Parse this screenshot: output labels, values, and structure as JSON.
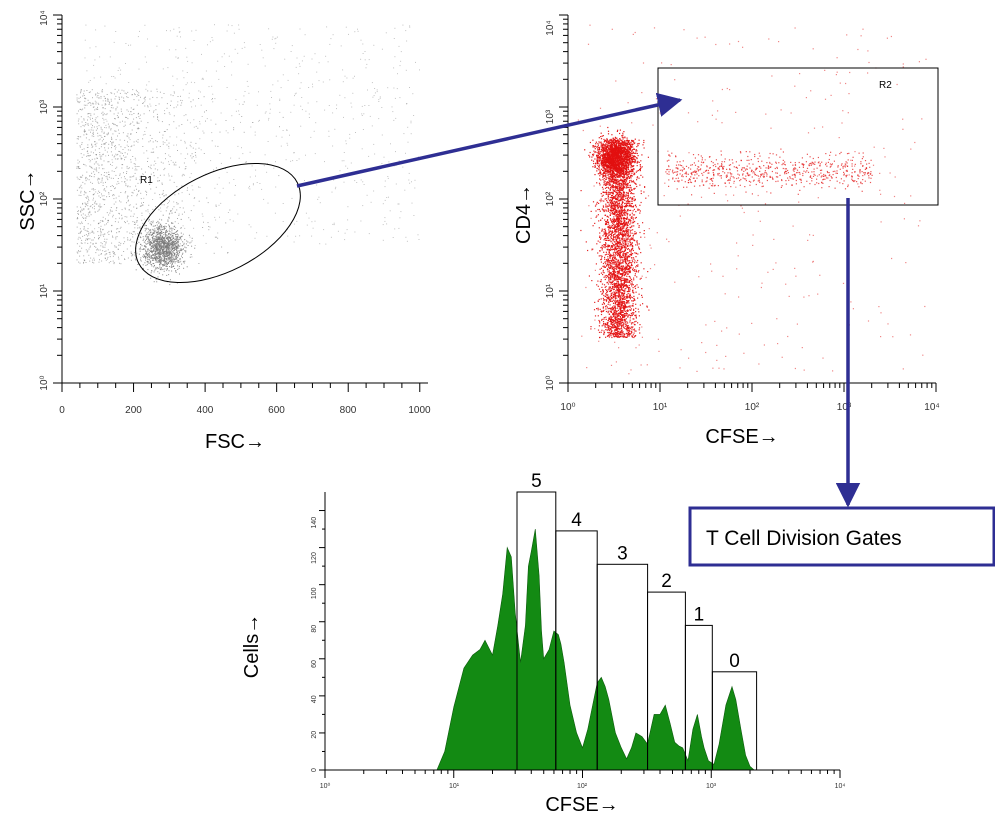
{
  "colors": {
    "arrow": "#2e2e93",
    "histogram_fill": "#138a13",
    "dots_gray": "#7a7a7a",
    "dots_red": "#e21010"
  },
  "callout": {
    "text": "T Cell Division Gates"
  },
  "chart_data": [
    {
      "type": "scatter",
      "xlabel": "FSC→",
      "ylabel": "SSC→",
      "x_scale": "linear",
      "y_scale": "log",
      "xlim": [
        0,
        1023
      ],
      "ylim": [
        1,
        10000
      ],
      "x_ticks": [
        "0",
        "200",
        "400",
        "600",
        "800",
        "1000"
      ],
      "y_ticks": [
        "10⁰",
        "10¹",
        "10²",
        "10³",
        "10⁴"
      ],
      "gate": {
        "name": "R1",
        "shape": "ellipse"
      },
      "main_population": {
        "x_center": 280,
        "y_center": 30
      }
    },
    {
      "type": "scatter",
      "xlabel": "CFSE→",
      "ylabel": "CD4→",
      "x_scale": "log",
      "y_scale": "log",
      "xlim": [
        1,
        10000
      ],
      "ylim": [
        1,
        10000
      ],
      "x_ticks": [
        "10⁰",
        "10¹",
        "10²",
        "10³",
        "10⁴"
      ],
      "y_ticks": [
        "10⁰",
        "10¹",
        "10²",
        "10³",
        "10⁴"
      ],
      "gate": {
        "name": "R2",
        "shape": "rectangle",
        "x_range": [
          10,
          3500
        ],
        "y_range": [
          100,
          3500
        ]
      },
      "main_population": {
        "x_center": 3.5,
        "y_range": [
          3,
          500
        ]
      }
    },
    {
      "type": "area",
      "xlabel": "CFSE→",
      "ylabel": "Cells→",
      "x_scale": "log",
      "xlim": [
        1,
        10000
      ],
      "ylim": [
        0,
        150
      ],
      "x_ticks": [
        "10⁰",
        "10¹",
        "10²",
        "10³",
        "10⁴"
      ],
      "y_ticks": [
        "0",
        "20",
        "40",
        "60",
        "80",
        "100",
        "120",
        "140"
      ],
      "x": [
        7.4,
        8.5,
        10,
        12,
        14,
        16,
        17.5,
        20,
        22,
        24,
        26,
        28,
        30,
        33,
        36,
        38,
        40,
        43,
        46,
        48,
        50,
        55,
        60,
        65,
        68,
        72,
        80,
        90,
        100,
        110,
        120,
        130,
        140,
        150,
        160,
        180,
        200,
        220,
        240,
        260,
        290,
        320,
        360,
        400,
        440,
        480,
        520,
        560,
        600,
        660,
        720,
        780,
        840,
        880,
        950,
        1050,
        1150,
        1300,
        1450,
        1550,
        1700,
        1850,
        2000,
        2150
      ],
      "y": [
        0,
        10,
        34,
        55,
        62,
        65,
        70,
        62,
        78,
        95,
        120,
        115,
        85,
        58,
        78,
        110,
        118,
        130,
        105,
        75,
        60,
        65,
        75,
        73,
        68,
        58,
        35,
        20,
        12,
        22,
        35,
        47,
        50,
        45,
        38,
        20,
        12,
        6,
        12,
        20,
        18,
        14,
        30,
        30,
        35,
        25,
        15,
        13,
        12,
        5,
        22,
        30,
        18,
        12,
        5,
        3,
        14,
        35,
        45,
        38,
        22,
        8,
        2,
        0
      ],
      "division_gates": [
        {
          "label": "5",
          "x_range": [
            31,
            62
          ],
          "height": 150
        },
        {
          "label": "4",
          "x_range": [
            62,
            130
          ],
          "height": 129
        },
        {
          "label": "3",
          "x_range": [
            130,
            320
          ],
          "height": 111
        },
        {
          "label": "2",
          "x_range": [
            320,
            630
          ],
          "height": 96
        },
        {
          "label": "1",
          "x_range": [
            630,
            1020
          ],
          "height": 78
        },
        {
          "label": "0",
          "x_range": [
            1020,
            2250
          ],
          "height": 53
        }
      ]
    }
  ]
}
